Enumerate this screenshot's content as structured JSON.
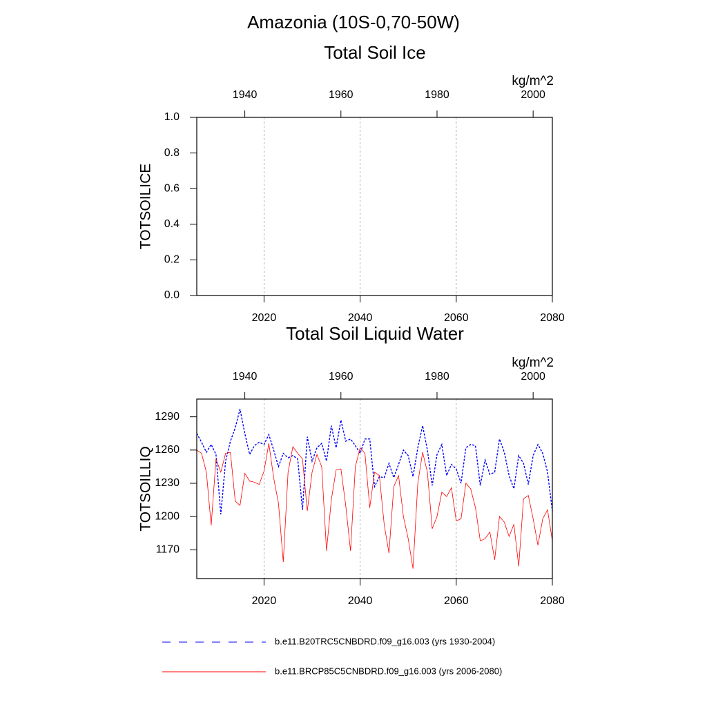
{
  "title": "Amazonia (10S-0,70-50W)",
  "chart_data": [
    {
      "type": "line",
      "title": "Total Soil Ice",
      "ylabel": "TOTSOILICE",
      "units": "kg/m^2",
      "xlim": [
        2006,
        2080
      ],
      "xticks": [
        2020,
        2040,
        2060,
        2080
      ],
      "xtick_color": "#ff0000",
      "x2lim": [
        1930,
        2004
      ],
      "x2ticks": [
        1940,
        1960,
        1980,
        2000
      ],
      "x2tick_color": "#0000ff",
      "ylim": [
        0,
        1
      ],
      "yticks": [
        {
          "value": 0,
          "label": "0.0"
        },
        0.2,
        0.4,
        0.6,
        0.8,
        {
          "value": 1,
          "label": "1.0"
        }
      ],
      "grid": "x",
      "series": []
    },
    {
      "type": "line",
      "title": "Total Soil Liquid Water",
      "ylabel": "TOTSOILLIQ",
      "units": "kg/m^2",
      "xlim": [
        2006,
        2080
      ],
      "xticks": [
        2020,
        2040,
        2060,
        2080
      ],
      "xtick_color": "#ff0000",
      "x2lim": [
        1930,
        2004
      ],
      "x2ticks": [
        1940,
        1960,
        1980,
        2000
      ],
      "x2tick_color": "#0000ff",
      "ylim": [
        1144,
        1306
      ],
      "yticks": [
        1170,
        1200,
        1230,
        1260,
        1290
      ],
      "grid": "x",
      "series": [
        {
          "name": "b.e11.B20TRC5CNBDRD.f09_g16.003 (yrs 1930-2004)",
          "color": "#0000ff",
          "line_style": "dashed",
          "axis": "x2",
          "x": [
            1930,
            1931,
            1932,
            1933,
            1934,
            1935,
            1936,
            1937,
            1938,
            1939,
            1940,
            1941,
            1942,
            1943,
            1944,
            1945,
            1946,
            1947,
            1948,
            1949,
            1950,
            1951,
            1952,
            1953,
            1954,
            1955,
            1956,
            1957,
            1958,
            1959,
            1960,
            1961,
            1962,
            1963,
            1964,
            1965,
            1966,
            1967,
            1968,
            1969,
            1970,
            1971,
            1972,
            1973,
            1974,
            1975,
            1976,
            1977,
            1978,
            1979,
            1980,
            1981,
            1982,
            1983,
            1984,
            1985,
            1986,
            1987,
            1988,
            1989,
            1990,
            1991,
            1992,
            1993,
            1994,
            1995,
            1996,
            1997,
            1998,
            1999,
            2000,
            2001,
            2002,
            2003,
            2004
          ],
          "values": [
            1275,
            1267,
            1258,
            1265,
            1256,
            1202,
            1250,
            1268,
            1280,
            1297,
            1275,
            1256,
            1264,
            1267,
            1265,
            1274,
            1260,
            1245,
            1257,
            1253,
            1255,
            1252,
            1206,
            1272,
            1250,
            1262,
            1266,
            1250,
            1282,
            1262,
            1287,
            1268,
            1270,
            1264,
            1257,
            1270,
            1270,
            1227,
            1236,
            1235,
            1248,
            1235,
            1247,
            1260,
            1255,
            1236,
            1262,
            1282,
            1260,
            1228,
            1256,
            1265,
            1237,
            1247,
            1243,
            1230,
            1262,
            1265,
            1264,
            1228,
            1251,
            1238,
            1240,
            1270,
            1258,
            1237,
            1225,
            1255,
            1248,
            1229,
            1255,
            1265,
            1257,
            1240,
            1205
          ]
        },
        {
          "name": "b.e11.BRCP85C5CNBDRD.f09_g16.003 (yrs 2006-2080)",
          "color": "#ff0000",
          "line_style": "solid",
          "x": [
            2006,
            2007,
            2008,
            2009,
            2010,
            2011,
            2012,
            2013,
            2014,
            2015,
            2016,
            2017,
            2018,
            2019,
            2020,
            2021,
            2022,
            2023,
            2024,
            2025,
            2026,
            2027,
            2028,
            2029,
            2030,
            2031,
            2032,
            2033,
            2034,
            2035,
            2036,
            2037,
            2038,
            2039,
            2040,
            2041,
            2042,
            2043,
            2044,
            2045,
            2046,
            2047,
            2048,
            2049,
            2050,
            2051,
            2052,
            2053,
            2054,
            2055,
            2056,
            2057,
            2058,
            2059,
            2060,
            2061,
            2062,
            2063,
            2064,
            2065,
            2066,
            2067,
            2068,
            2069,
            2070,
            2071,
            2072,
            2073,
            2074,
            2075,
            2076,
            2077,
            2078,
            2079,
            2080
          ],
          "values": [
            1260,
            1257,
            1240,
            1192,
            1252,
            1240,
            1257,
            1258,
            1214,
            1210,
            1239,
            1232,
            1231,
            1229,
            1241,
            1266,
            1235,
            1212,
            1159,
            1240,
            1263,
            1257,
            1252,
            1205,
            1240,
            1256,
            1245,
            1169,
            1215,
            1242,
            1243,
            1210,
            1169,
            1245,
            1262,
            1257,
            1208,
            1240,
            1237,
            1193,
            1167,
            1227,
            1237,
            1200,
            1180,
            1153,
            1230,
            1258,
            1240,
            1189,
            1200,
            1222,
            1218,
            1226,
            1196,
            1198,
            1230,
            1225,
            1208,
            1178,
            1180,
            1186,
            1161,
            1200,
            1195,
            1182,
            1193,
            1155,
            1216,
            1219,
            1198,
            1174,
            1198,
            1206,
            1178
          ]
        }
      ]
    }
  ]
}
